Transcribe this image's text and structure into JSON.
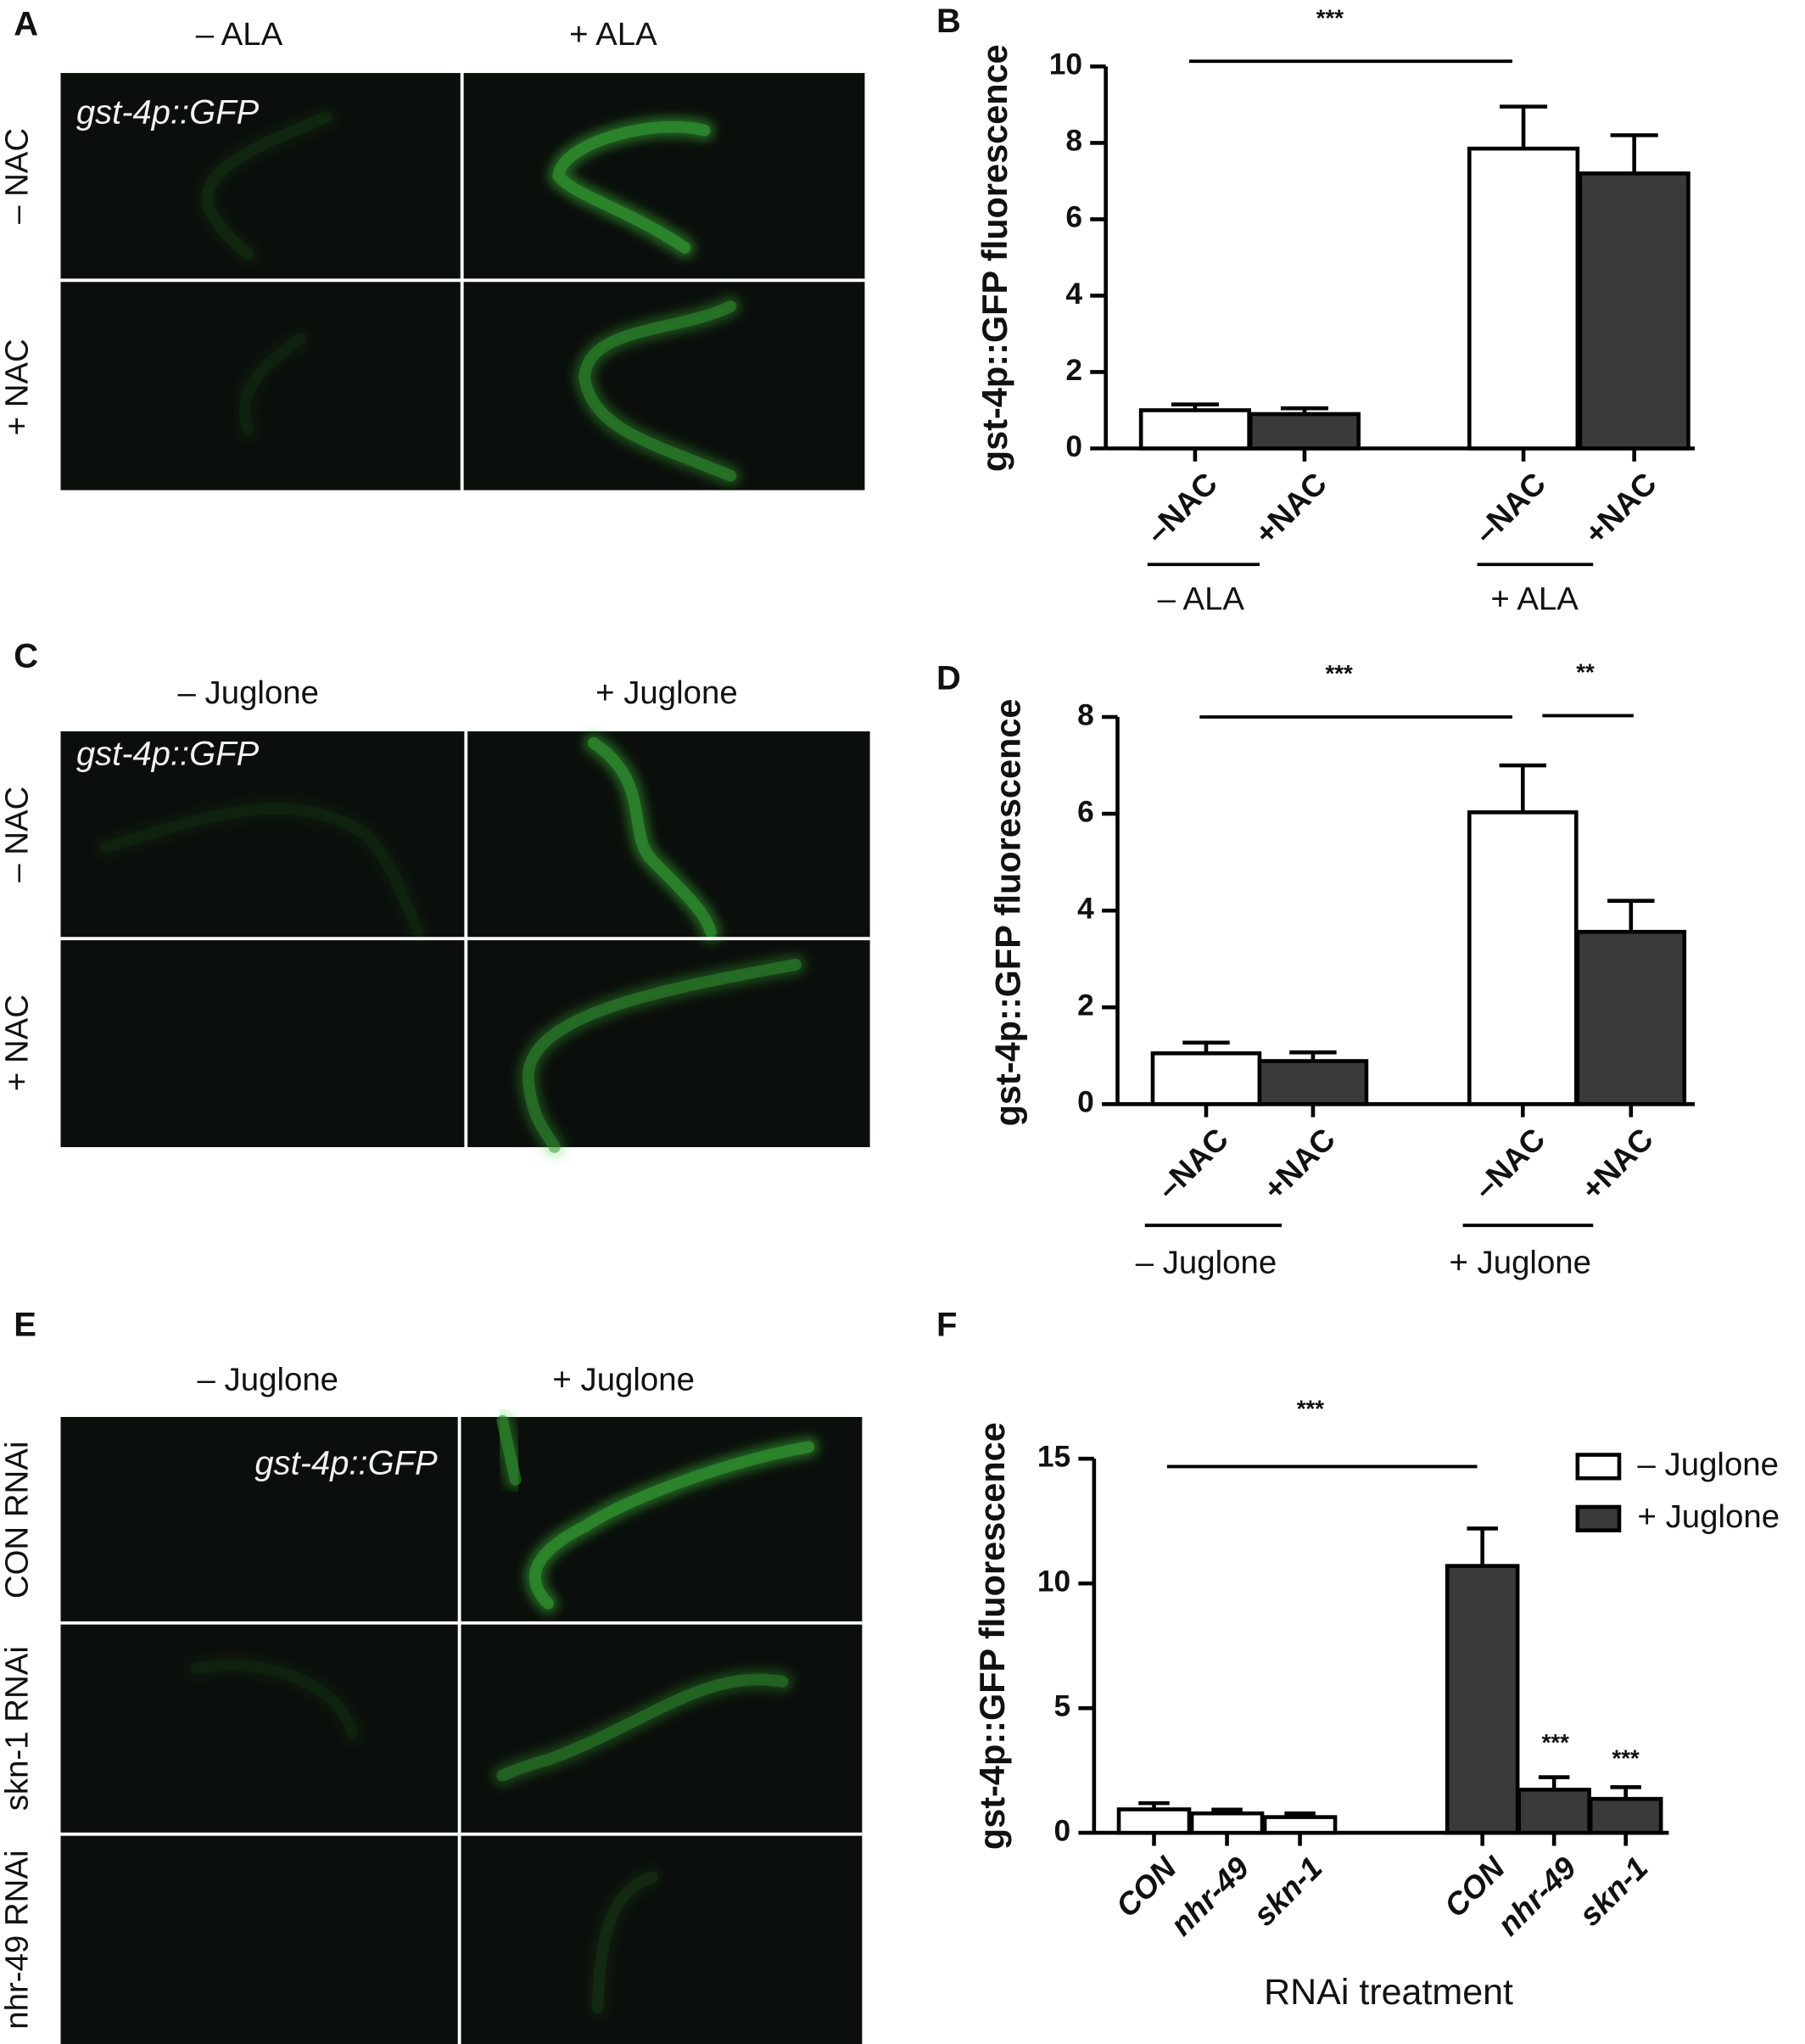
{
  "image_panels": [
    {
      "panel_label": "A",
      "columns": [
        "– ALA",
        "+ ALA"
      ],
      "rows": [
        "– NAC",
        "+ NAC"
      ],
      "reporter_label": "gst-4p::GFP"
    },
    {
      "panel_label": "C",
      "columns": [
        "– Juglone",
        "+ Juglone"
      ],
      "rows": [
        "– NAC",
        "+ NAC"
      ],
      "reporter_label": "gst-4p::GFP"
    },
    {
      "panel_label": "E",
      "columns": [
        "– Juglone",
        "+ Juglone"
      ],
      "rows": [
        "CON RNAi",
        "skn-1 RNAi",
        "nhr-49 RNAi"
      ],
      "reporter_label": "gst-4p::GFP"
    }
  ],
  "chart_data": [
    {
      "type": "bar",
      "panel_label": "B",
      "y_label": "gst-4p::GFP fluorescence",
      "group_by": "category",
      "categories": [
        "– ALA",
        "+ ALA"
      ],
      "series": [
        {
          "name": "–NAC",
          "color": "#ffffff",
          "values": [
            1.0,
            7.85
          ],
          "errors": [
            0.15,
            1.1
          ]
        },
        {
          "name": "+NAC",
          "color": "#3a3a3a",
          "values": [
            0.9,
            7.2
          ],
          "errors": [
            0.15,
            1.0
          ]
        }
      ],
      "ylim": [
        0,
        10
      ],
      "yticks": [
        0,
        2,
        4,
        6,
        8,
        10
      ],
      "legend": false,
      "annotations": [
        "***"
      ]
    },
    {
      "type": "bar",
      "panel_label": "D",
      "y_label": "gst-4p::GFP fluorescence",
      "group_by": "category",
      "categories": [
        "– Juglone",
        "+ Juglone"
      ],
      "series": [
        {
          "name": "–NAC",
          "color": "#ffffff",
          "values": [
            1.05,
            6.03
          ],
          "errors": [
            0.22,
            0.97
          ]
        },
        {
          "name": "+NAC",
          "color": "#3a3a3a",
          "values": [
            0.89,
            3.56
          ],
          "errors": [
            0.18,
            0.64
          ]
        }
      ],
      "ylim": [
        0,
        8
      ],
      "yticks": [
        0,
        2,
        4,
        6,
        8
      ],
      "legend": false,
      "annotations": [
        "***",
        "**"
      ]
    },
    {
      "type": "bar",
      "panel_label": "F",
      "y_label": "gst-4p::GFP fluorescence",
      "x_label": "RNAi treatment",
      "group_by": "series",
      "categories": [
        "CON",
        "nhr-49",
        "skn-1"
      ],
      "series": [
        {
          "name": "– Juglone",
          "color": "#ffffff",
          "values": [
            0.94,
            0.78,
            0.63
          ],
          "errors": [
            0.25,
            0.15,
            0.15
          ]
        },
        {
          "name": "+ Juglone",
          "color": "#3a3a3a",
          "values": [
            10.7,
            1.73,
            1.36
          ],
          "errors": [
            1.5,
            0.5,
            0.47
          ]
        }
      ],
      "ylim": [
        0,
        15
      ],
      "yticks": [
        0,
        5,
        10,
        15
      ],
      "legend": true,
      "legend_position": "upper right",
      "annotations": [
        "***",
        "***",
        "***"
      ]
    }
  ]
}
